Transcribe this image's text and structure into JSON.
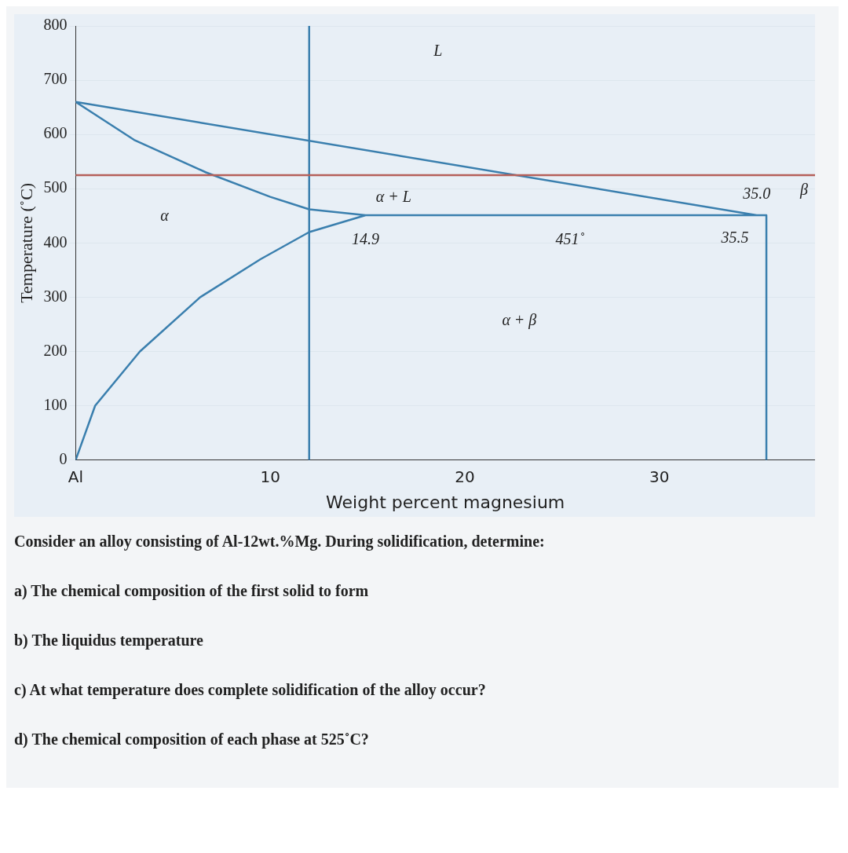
{
  "chart_data": {
    "type": "line",
    "xlabel": "Weight percent magnesium",
    "ylabel": "Temperature (˚C)",
    "xlim": [
      0,
      38
    ],
    "xticks": [
      {
        "value": 0,
        "label": "Al"
      },
      10,
      20,
      30
    ],
    "ylim": [
      0,
      800
    ],
    "yticks": [
      0,
      100,
      200,
      300,
      400,
      500,
      600,
      700,
      800
    ],
    "grid": "y",
    "marker": "none",
    "line_style": "solid",
    "series": [
      {
        "type": "line",
        "color": "#3a7fae",
        "x": [
          0,
          1,
          3.3,
          6.4,
          9.5,
          12,
          14.9,
          12,
          10,
          6.7,
          3,
          0,
          35.0,
          14.9,
          35.5,
          35.5
        ],
        "values": [
          0,
          100,
          200,
          300,
          370,
          420,
          451,
          462,
          485,
          530,
          590,
          660,
          451,
          451,
          451,
          0
        ]
      }
    ],
    "ref_lines": [
      {
        "axis": "x",
        "value": 12,
        "color": "#3a7fae"
      },
      {
        "axis": "y",
        "value": 525,
        "color": "#b5605a"
      }
    ],
    "annotations": [
      "L",
      "α",
      "α + L",
      "α + β",
      "β",
      {
        "text": "14.9",
        "x": 14.9,
        "y": 451
      },
      {
        "text": "451˚",
        "x": 25.4,
        "y": 451
      },
      {
        "text": "35.5",
        "x": 35.5,
        "y": 451
      },
      {
        "text": "35.0",
        "x": 35.0,
        "y": 451
      },
      "Consider an alloy consisting of Al-12wt.%Mg. During solidification, determine:",
      "a) The chemical composition of the first solid to form",
      "b) The liquidus temperature",
      "c) At what temperature does complete solidification of the alloy occur?",
      "d) The chemical composition of each phase at 525˚C?"
    ]
  }
}
